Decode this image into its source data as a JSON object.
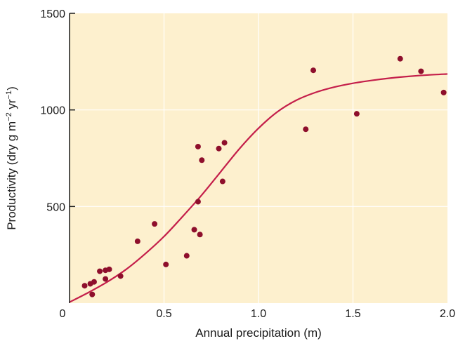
{
  "chart_data": {
    "type": "scatter",
    "xlabel": "Annual precipitation (m)",
    "ylabel_parts": {
      "main": "Productivity (dry g m",
      "exp1": "−2",
      "mid": " yr",
      "exp2": "−1",
      "end": ")"
    },
    "xlim": [
      0,
      2.0
    ],
    "ylim": [
      0,
      1500
    ],
    "x_ticks": [
      {
        "value": 0,
        "label": "0"
      },
      {
        "value": 0.5,
        "label": "0.5"
      },
      {
        "value": 1.0,
        "label": "1.0"
      },
      {
        "value": 1.5,
        "label": "1.5"
      },
      {
        "value": 2.0,
        "label": "2.0"
      }
    ],
    "y_ticks": [
      {
        "value": 500,
        "label": "500"
      },
      {
        "value": 1000,
        "label": "1000"
      },
      {
        "value": 1500,
        "label": "1500"
      }
    ],
    "grid": true,
    "points": [
      {
        "x": 0.08,
        "y": 90
      },
      {
        "x": 0.11,
        "y": 100
      },
      {
        "x": 0.12,
        "y": 45
      },
      {
        "x": 0.13,
        "y": 110
      },
      {
        "x": 0.16,
        "y": 165
      },
      {
        "x": 0.19,
        "y": 170
      },
      {
        "x": 0.19,
        "y": 125
      },
      {
        "x": 0.21,
        "y": 175
      },
      {
        "x": 0.27,
        "y": 140
      },
      {
        "x": 0.36,
        "y": 320
      },
      {
        "x": 0.45,
        "y": 410
      },
      {
        "x": 0.51,
        "y": 200
      },
      {
        "x": 0.62,
        "y": 245
      },
      {
        "x": 0.66,
        "y": 380
      },
      {
        "x": 0.68,
        "y": 810
      },
      {
        "x": 0.68,
        "y": 525
      },
      {
        "x": 0.69,
        "y": 355
      },
      {
        "x": 0.7,
        "y": 740
      },
      {
        "x": 0.79,
        "y": 800
      },
      {
        "x": 0.81,
        "y": 630
      },
      {
        "x": 0.82,
        "y": 830
      },
      {
        "x": 1.25,
        "y": 900
      },
      {
        "x": 1.29,
        "y": 1205
      },
      {
        "x": 1.52,
        "y": 980
      },
      {
        "x": 1.75,
        "y": 1265
      },
      {
        "x": 1.86,
        "y": 1200
      },
      {
        "x": 1.98,
        "y": 1090
      }
    ],
    "fit_curve": [
      {
        "x": 0.0,
        "y": 5
      },
      {
        "x": 0.1,
        "y": 55
      },
      {
        "x": 0.2,
        "y": 110
      },
      {
        "x": 0.3,
        "y": 175
      },
      {
        "x": 0.4,
        "y": 255
      },
      {
        "x": 0.5,
        "y": 345
      },
      {
        "x": 0.6,
        "y": 450
      },
      {
        "x": 0.7,
        "y": 560
      },
      {
        "x": 0.8,
        "y": 680
      },
      {
        "x": 0.9,
        "y": 800
      },
      {
        "x": 1.0,
        "y": 905
      },
      {
        "x": 1.1,
        "y": 990
      },
      {
        "x": 1.2,
        "y": 1050
      },
      {
        "x": 1.3,
        "y": 1090
      },
      {
        "x": 1.4,
        "y": 1118
      },
      {
        "x": 1.5,
        "y": 1138
      },
      {
        "x": 1.6,
        "y": 1153
      },
      {
        "x": 1.7,
        "y": 1165
      },
      {
        "x": 1.8,
        "y": 1174
      },
      {
        "x": 1.9,
        "y": 1181
      },
      {
        "x": 2.0,
        "y": 1186
      }
    ],
    "colors": {
      "background": "#fdf0ce",
      "grid": "#ffffff",
      "curve": "#c41e4a",
      "points": "#8e0f2c",
      "axis": "#1a1a1a"
    }
  }
}
